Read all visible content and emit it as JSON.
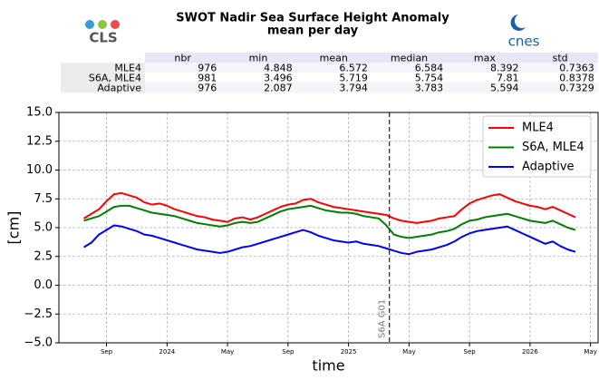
{
  "header": {
    "title": "SWOT Nadir Sea Surface Height Anomaly",
    "subtitle": "mean per day",
    "logo_left": "CLS",
    "logo_right": "cnes"
  },
  "table": {
    "columns": [
      "nbr",
      "min",
      "mean",
      "median",
      "max",
      "std"
    ],
    "rows": [
      [
        "MLE4",
        976,
        4.848,
        6.572,
        6.584,
        8.392,
        0.7363
      ],
      [
        "S6A, MLE4",
        981,
        3.496,
        5.719,
        5.754,
        7.81,
        0.8378
      ],
      [
        "Adaptive",
        976,
        2.087,
        3.794,
        3.783,
        5.594,
        0.7329
      ]
    ]
  },
  "chart_data": {
    "type": "line",
    "xlabel": "time",
    "ylabel": "[cm]",
    "grid": true,
    "legend": "upper right",
    "x": [
      -1.5,
      -1,
      -0.5,
      0,
      0.5,
      1,
      1.5,
      2,
      2.5,
      3,
      3.5,
      4,
      4.5,
      5,
      5.5,
      6,
      6.5,
      7,
      7.5,
      8,
      8.5,
      9,
      9.5,
      10,
      10.5,
      11,
      11.5,
      12,
      12.5,
      13,
      13.5,
      14,
      14.5,
      15,
      15.5,
      16,
      16.5,
      17,
      17.5,
      18,
      18.5,
      19,
      19.5,
      20,
      20.5,
      21,
      21.5,
      22,
      22.5,
      23,
      23.5,
      24,
      24.5,
      25,
      25.5,
      26,
      26.5,
      27,
      27.5,
      28,
      28.5,
      29,
      29.5,
      30,
      30.5,
      31
    ],
    "series": [
      {
        "name": "MLE4",
        "color": "#ff0000",
        "values": [
          5.8,
          6.2,
          6.6,
          7.3,
          7.9,
          8.0,
          7.8,
          7.6,
          7.2,
          7.0,
          7.1,
          6.9,
          6.6,
          6.4,
          6.2,
          6.0,
          5.9,
          5.7,
          5.6,
          5.5,
          5.8,
          5.9,
          5.7,
          5.9,
          6.2,
          6.5,
          6.8,
          7.0,
          7.1,
          7.4,
          7.5,
          7.2,
          7.0,
          6.8,
          6.7,
          6.6,
          6.5,
          6.4,
          6.3,
          6.2,
          6.1,
          5.8,
          5.6,
          5.5,
          5.4,
          5.5,
          5.6,
          5.8,
          5.9,
          6.0,
          6.6,
          7.1,
          7.4,
          7.6,
          7.8,
          7.9,
          7.6,
          7.3,
          7.1,
          6.9,
          6.8,
          6.6,
          6.8,
          6.5,
          6.2,
          5.9
        ]
      },
      {
        "name": "S6A, MLE4",
        "color": "#008000",
        "values": [
          5.6,
          5.8,
          6.0,
          6.4,
          6.8,
          6.9,
          6.9,
          6.7,
          6.5,
          6.3,
          6.2,
          6.1,
          6.0,
          5.8,
          5.6,
          5.4,
          5.3,
          5.2,
          5.1,
          5.2,
          5.4,
          5.5,
          5.4,
          5.5,
          5.8,
          6.1,
          6.4,
          6.6,
          6.7,
          6.8,
          6.9,
          6.7,
          6.5,
          6.4,
          6.3,
          6.3,
          6.2,
          6.0,
          5.9,
          5.8,
          5.2,
          4.4,
          4.2,
          4.1,
          4.2,
          4.3,
          4.4,
          4.6,
          4.7,
          4.9,
          5.3,
          5.6,
          5.7,
          5.9,
          6.0,
          6.1,
          6.2,
          6.0,
          5.8,
          5.6,
          5.5,
          5.4,
          5.6,
          5.3,
          5.0,
          4.8
        ]
      },
      {
        "name": "Adaptive",
        "color": "#0000ff",
        "values": [
          3.3,
          3.7,
          4.4,
          4.8,
          5.2,
          5.1,
          4.9,
          4.7,
          4.4,
          4.3,
          4.1,
          3.9,
          3.7,
          3.5,
          3.3,
          3.1,
          3.0,
          2.9,
          2.8,
          2.9,
          3.1,
          3.3,
          3.4,
          3.6,
          3.8,
          4.0,
          4.2,
          4.4,
          4.6,
          4.8,
          4.6,
          4.3,
          4.1,
          3.9,
          3.8,
          3.7,
          3.8,
          3.6,
          3.5,
          3.4,
          3.2,
          3.0,
          2.8,
          2.7,
          2.9,
          3.0,
          3.1,
          3.3,
          3.5,
          3.8,
          4.2,
          4.5,
          4.7,
          4.8,
          4.9,
          5.0,
          5.1,
          4.8,
          4.5,
          4.2,
          3.9,
          3.6,
          3.8,
          3.4,
          3.1,
          2.9
        ]
      }
    ],
    "xlim": [
      -3.15,
      32.5
    ],
    "xticks": [
      {
        "value": 0,
        "label": "Sep"
      },
      {
        "value": 4,
        "label": "2024"
      },
      {
        "value": 8,
        "label": "May"
      },
      {
        "value": 12,
        "label": "Sep"
      },
      {
        "value": 16,
        "label": "2025"
      },
      {
        "value": 20,
        "label": "May"
      },
      {
        "value": 24,
        "label": "Sep"
      },
      {
        "value": 28,
        "label": "2026"
      },
      {
        "value": 32,
        "label": "May"
      }
    ],
    "ylim": [
      -5,
      15
    ],
    "yticks": [
      {
        "value": -5,
        "label": "−5.0"
      },
      {
        "value": -2.5,
        "label": "−2.5"
      },
      {
        "value": 0,
        "label": "0.0"
      },
      {
        "value": 2.5,
        "label": "2.5"
      },
      {
        "value": 5,
        "label": "5.0"
      },
      {
        "value": 7.5,
        "label": "7.5"
      },
      {
        "value": 10,
        "label": "10.0"
      },
      {
        "value": 12.5,
        "label": "12.5"
      },
      {
        "value": 15,
        "label": "15.0"
      }
    ],
    "vline": {
      "x": 18.7,
      "label": "S6A G01"
    }
  }
}
